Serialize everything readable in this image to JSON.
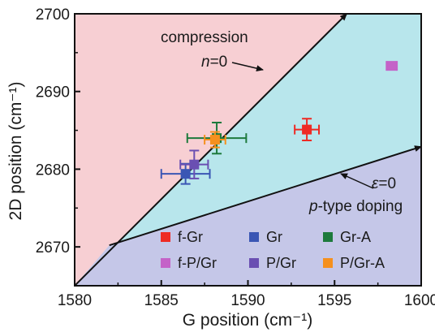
{
  "chart_data": {
    "type": "scatter",
    "xlabel": "G position (cm⁻¹)",
    "ylabel": "2D position (cm⁻¹)",
    "xlim": [
      1580,
      1600
    ],
    "ylim": [
      2665,
      2700
    ],
    "xticks": [
      "1580",
      "1585",
      "1590",
      "1595",
      "1600"
    ],
    "yticks": [
      "2670",
      "2680",
      "2690",
      "2700"
    ],
    "grid": false,
    "legend_position": "bottom-right",
    "regions": {
      "upper_color": "#f7cfd3",
      "middle_color": "#b8e6ec",
      "lower_color": "#c5c7e8"
    },
    "lines": [
      {
        "name": "compression",
        "points": [
          [
            1580,
            2665
          ],
          [
            1595.7,
            2700
          ]
        ]
      },
      {
        "name": "p-type doping",
        "points": [
          [
            1582,
            2670.2
          ],
          [
            1600,
            2682.9
          ]
        ]
      }
    ],
    "annotations": {
      "compression": "compression",
      "n_var": "n",
      "n_eq": "=0",
      "eps_var": "ε",
      "eps_eq": "=0",
      "ptype_var": "p",
      "ptype_rest": "-type doping"
    },
    "series": [
      {
        "name": "f-Gr",
        "color": "#ee2a24",
        "x": 1593.4,
        "y": 2685.1,
        "xerr": 0.7,
        "yerr": 1.4
      },
      {
        "name": "Gr",
        "color": "#3a56b4",
        "x": 1586.4,
        "y": 2679.4,
        "xerr": 1.4,
        "yerr": 1.3
      },
      {
        "name": "Gr-A",
        "color": "#1d7a3c",
        "x": 1588.2,
        "y": 2684.0,
        "xerr": 1.7,
        "yerr": 2.0
      },
      {
        "name": "f-P/Gr",
        "color": "#c463c8",
        "x": 1598.3,
        "y": 2693.3,
        "xerr": 0.3,
        "yerr": 0.3
      },
      {
        "name": "P/Gr",
        "color": "#6a4fb2",
        "x": 1586.9,
        "y": 2680.6,
        "xerr": 0.8,
        "yerr": 1.8
      },
      {
        "name": "P/Gr-A",
        "color": "#f5901e",
        "x": 1588.1,
        "y": 2683.8,
        "xerr": 0.6,
        "yerr": 1.0
      }
    ]
  }
}
